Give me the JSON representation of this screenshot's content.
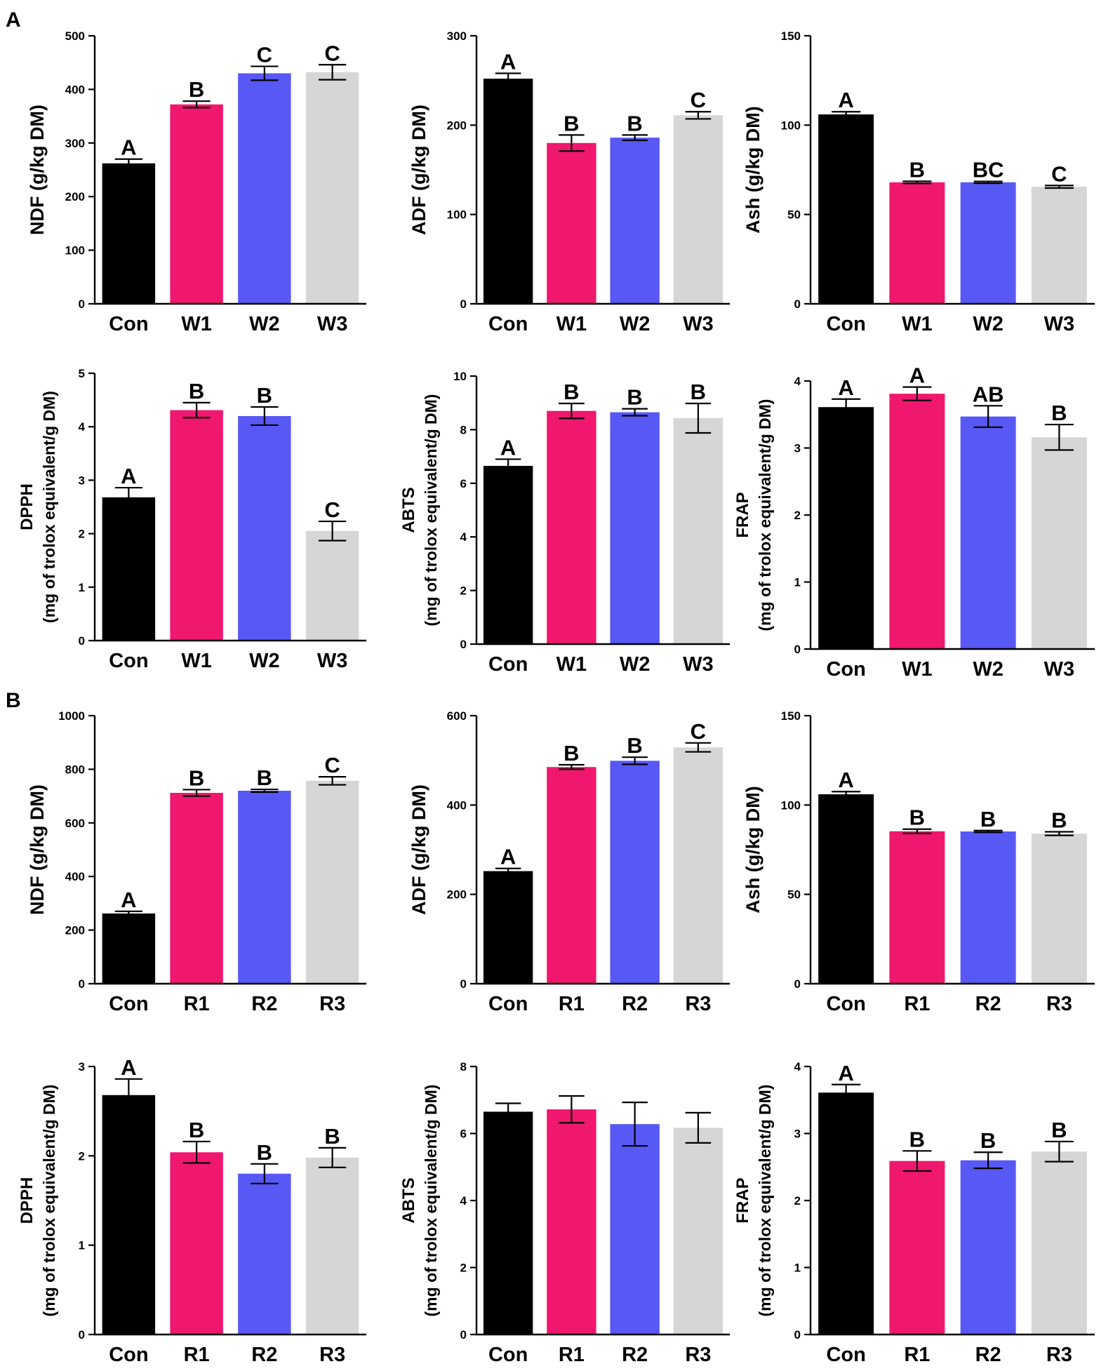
{
  "figure": {
    "panel_labels": [
      "A",
      "B"
    ],
    "colors": {
      "Con": "#000000",
      "W1/R1": "#f0176f",
      "W2/R2": "#5858f5",
      "W3/R3": "#d6d6d6"
    }
  },
  "chart_data": [
    {
      "id": "A-NDF",
      "type": "bar",
      "panel": "A",
      "title": "",
      "ylabel": [
        "NDF (g/kg DM)"
      ],
      "xlabel": "",
      "categories": [
        "Con",
        "W1",
        "W2",
        "W3"
      ],
      "values": [
        262,
        372,
        430,
        432
      ],
      "errors": [
        8,
        6,
        13,
        14
      ],
      "significance": [
        "A",
        "B",
        "C",
        "C"
      ],
      "ylim": [
        0,
        500
      ],
      "yticks": [
        0,
        100,
        200,
        300,
        400,
        500
      ]
    },
    {
      "id": "A-ADF",
      "type": "bar",
      "panel": "A",
      "title": "",
      "ylabel": [
        "ADF (g/kg DM)"
      ],
      "xlabel": "",
      "categories": [
        "Con",
        "W1",
        "W2",
        "W3"
      ],
      "values": [
        252,
        180,
        186,
        211
      ],
      "errors": [
        6,
        9,
        3,
        4
      ],
      "significance": [
        "A",
        "B",
        "B",
        "C"
      ],
      "ylim": [
        0,
        300
      ],
      "yticks": [
        0,
        100,
        200,
        300
      ]
    },
    {
      "id": "A-Ash",
      "type": "bar",
      "panel": "A",
      "title": "",
      "ylabel": [
        "Ash (g/kg DM)"
      ],
      "xlabel": "",
      "categories": [
        "Con",
        "W1",
        "W2",
        "W3"
      ],
      "values": [
        106,
        68,
        68,
        65.5
      ],
      "errors": [
        1.5,
        0.6,
        0.5,
        0.7
      ],
      "significance": [
        "A",
        "B",
        "BC",
        "C"
      ],
      "ylim": [
        0,
        150
      ],
      "yticks": [
        0,
        50,
        100,
        150
      ]
    },
    {
      "id": "A-DPPH",
      "type": "bar",
      "panel": "A",
      "title": "",
      "ylabel": [
        "DPPH",
        "(mg of trolox equivalent/g DM)"
      ],
      "xlabel": "",
      "categories": [
        "Con",
        "W1",
        "W2",
        "W3"
      ],
      "values": [
        2.68,
        4.31,
        4.2,
        2.05
      ],
      "errors": [
        0.18,
        0.14,
        0.17,
        0.18
      ],
      "significance": [
        "A",
        "B",
        "B",
        "C"
      ],
      "ylim": [
        0,
        5
      ],
      "yticks": [
        0,
        1,
        2,
        3,
        4,
        5
      ]
    },
    {
      "id": "A-ABTS",
      "type": "bar",
      "panel": "A",
      "title": "",
      "ylabel": [
        "ABTS",
        "(mg of trolox equivalent/g DM)"
      ],
      "xlabel": "",
      "categories": [
        "Con",
        "W1",
        "W2",
        "W3"
      ],
      "values": [
        6.65,
        8.7,
        8.65,
        8.43
      ],
      "errors": [
        0.25,
        0.28,
        0.13,
        0.55
      ],
      "significance": [
        "A",
        "B",
        "B",
        "B"
      ],
      "ylim": [
        0,
        10
      ],
      "yticks": [
        0,
        2,
        4,
        6,
        8,
        10
      ]
    },
    {
      "id": "A-FRAP",
      "type": "bar",
      "panel": "A",
      "title": "",
      "ylabel": [
        "FRAP",
        "(mg of trolox equivalent/g DM)"
      ],
      "xlabel": "",
      "categories": [
        "Con",
        "W1",
        "W2",
        "W3"
      ],
      "values": [
        3.61,
        3.81,
        3.47,
        3.16
      ],
      "errors": [
        0.12,
        0.1,
        0.16,
        0.19
      ],
      "significance": [
        "A",
        "A",
        "AB",
        "B"
      ],
      "ylim": [
        0,
        4
      ],
      "yticks": [
        0,
        1,
        2,
        3,
        4
      ]
    },
    {
      "id": "B-NDF",
      "type": "bar",
      "panel": "B",
      "title": "",
      "ylabel": [
        "NDF (g/kg DM)"
      ],
      "xlabel": "",
      "categories": [
        "Con",
        "R1",
        "R2",
        "R3"
      ],
      "values": [
        262,
        712,
        720,
        757
      ],
      "errors": [
        8,
        12,
        5,
        15
      ],
      "significance": [
        "A",
        "B",
        "B",
        "C"
      ],
      "ylim": [
        0,
        1000
      ],
      "yticks": [
        0,
        200,
        400,
        600,
        800,
        1000
      ]
    },
    {
      "id": "B-ADF",
      "type": "bar",
      "panel": "B",
      "title": "",
      "ylabel": [
        "ADF (g/kg DM)"
      ],
      "xlabel": "",
      "categories": [
        "Con",
        "R1",
        "R2",
        "R3"
      ],
      "values": [
        252,
        485,
        499,
        529
      ],
      "errors": [
        6,
        5,
        8,
        10
      ],
      "significance": [
        "A",
        "B",
        "B",
        "C"
      ],
      "ylim": [
        0,
        600
      ],
      "yticks": [
        0,
        200,
        400,
        600
      ]
    },
    {
      "id": "B-Ash",
      "type": "bar",
      "panel": "B",
      "title": "",
      "ylabel": [
        "Ash (g/kg DM)"
      ],
      "xlabel": "",
      "categories": [
        "Con",
        "R1",
        "R2",
        "R3"
      ],
      "values": [
        106,
        85.3,
        85.2,
        84
      ],
      "errors": [
        1.5,
        1.2,
        0.5,
        1
      ],
      "significance": [
        "A",
        "B",
        "B",
        "B"
      ],
      "ylim": [
        0,
        150
      ],
      "yticks": [
        0,
        50,
        100,
        150
      ]
    },
    {
      "id": "B-DPPH",
      "type": "bar",
      "panel": "B",
      "title": "",
      "ylabel": [
        "DPPH",
        "(mg of trolox equivalent/g DM)"
      ],
      "xlabel": "",
      "categories": [
        "Con",
        "R1",
        "R2",
        "R3"
      ],
      "values": [
        2.68,
        2.04,
        1.8,
        1.98
      ],
      "errors": [
        0.18,
        0.12,
        0.11,
        0.11
      ],
      "significance": [
        "A",
        "B",
        "B",
        "B"
      ],
      "ylim": [
        0,
        3
      ],
      "yticks": [
        0,
        1,
        2,
        3
      ]
    },
    {
      "id": "B-ABTS",
      "type": "bar",
      "panel": "B",
      "title": "",
      "ylabel": [
        "ABTS",
        "(mg of trolox equivalent/g DM)"
      ],
      "xlabel": "",
      "categories": [
        "Con",
        "R1",
        "R2",
        "R3"
      ],
      "values": [
        6.65,
        6.72,
        6.28,
        6.17
      ],
      "errors": [
        0.25,
        0.4,
        0.65,
        0.45
      ],
      "significance": [
        "",
        "",
        "",
        ""
      ],
      "ylim": [
        0,
        8
      ],
      "yticks": [
        0,
        2,
        4,
        6,
        8
      ]
    },
    {
      "id": "B-FRAP",
      "type": "bar",
      "panel": "B",
      "title": "",
      "ylabel": [
        "FRAP",
        "(mg of trolox equivalent/g DM)"
      ],
      "xlabel": "",
      "categories": [
        "Con",
        "R1",
        "R2",
        "R3"
      ],
      "values": [
        3.61,
        2.59,
        2.6,
        2.73
      ],
      "errors": [
        0.12,
        0.15,
        0.12,
        0.15
      ],
      "significance": [
        "A",
        "B",
        "B",
        "B"
      ],
      "ylim": [
        0,
        4
      ],
      "yticks": [
        0,
        1,
        2,
        3,
        4
      ]
    }
  ]
}
